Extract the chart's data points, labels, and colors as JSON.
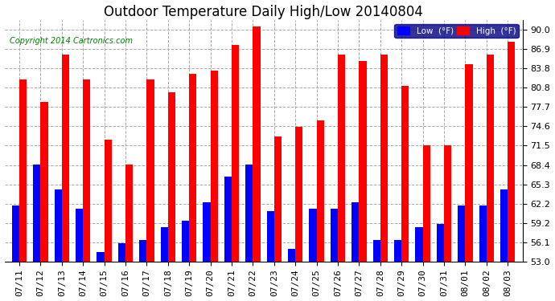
{
  "title": "Outdoor Temperature Daily High/Low 20140804",
  "copyright": "Copyright 2014 Cartronics.com",
  "dates": [
    "07/11",
    "07/12",
    "07/13",
    "07/14",
    "07/15",
    "07/16",
    "07/17",
    "07/18",
    "07/19",
    "07/20",
    "07/21",
    "07/22",
    "07/23",
    "07/24",
    "07/25",
    "07/26",
    "07/27",
    "07/28",
    "07/29",
    "07/30",
    "07/31",
    "08/01",
    "08/02",
    "08/03"
  ],
  "highs": [
    82.0,
    78.5,
    86.0,
    82.0,
    72.5,
    68.5,
    82.0,
    80.0,
    83.0,
    83.5,
    87.5,
    90.5,
    73.0,
    74.5,
    75.5,
    86.0,
    85.0,
    86.0,
    81.0,
    71.5,
    71.5,
    84.5,
    86.0,
    88.0
  ],
  "lows": [
    62.0,
    68.5,
    64.5,
    61.5,
    54.5,
    56.0,
    56.5,
    58.5,
    59.5,
    62.5,
    66.5,
    68.5,
    61.0,
    55.0,
    61.5,
    61.5,
    62.5,
    56.5,
    56.5,
    58.5,
    59.0,
    62.0,
    62.0,
    64.5
  ],
  "ymin": 53.0,
  "ymax": 91.5,
  "yticks": [
    53.0,
    56.1,
    59.2,
    62.2,
    65.3,
    68.4,
    71.5,
    74.6,
    77.7,
    80.8,
    83.8,
    86.9,
    90.0
  ],
  "bar_width": 0.35,
  "high_color": "#FF0000",
  "low_color": "#0000FF",
  "bg_color": "#FFFFFF",
  "grid_color": "#AAAAAA",
  "title_fontsize": 12,
  "tick_fontsize": 8,
  "copyright_color": "#008000",
  "legend_low_label": "Low  (°F)",
  "legend_high_label": "High  (°F)",
  "legend_bg": "#000080"
}
